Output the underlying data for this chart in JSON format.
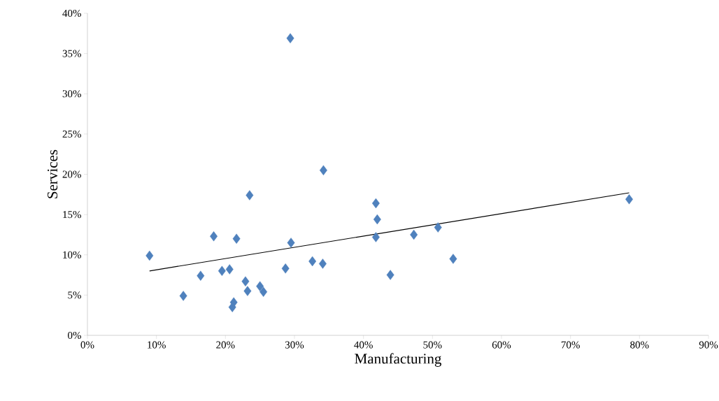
{
  "chart_data": {
    "type": "scatter",
    "xlabel": "Manufacturing",
    "ylabel": "Services",
    "marker": "diamond",
    "grid": false,
    "xlim": [
      0,
      90
    ],
    "ylim": [
      0,
      40
    ],
    "xticks": [
      {
        "value": 0,
        "label": "0%"
      },
      {
        "value": 10,
        "label": "10%"
      },
      {
        "value": 20,
        "label": "20%"
      },
      {
        "value": 30,
        "label": "30%"
      },
      {
        "value": 40,
        "label": "40%"
      },
      {
        "value": 50,
        "label": "50%"
      },
      {
        "value": 60,
        "label": "60%"
      },
      {
        "value": 70,
        "label": "70%"
      },
      {
        "value": 80,
        "label": "80%"
      },
      {
        "value": 90,
        "label": "90%"
      }
    ],
    "yticks": [
      {
        "value": 0,
        "label": "0%"
      },
      {
        "value": 5,
        "label": "5%"
      },
      {
        "value": 10,
        "label": "10%"
      },
      {
        "value": 15,
        "label": "15%"
      },
      {
        "value": 20,
        "label": "20%"
      },
      {
        "value": 25,
        "label": "25%"
      },
      {
        "value": 30,
        "label": "30%"
      },
      {
        "value": 35,
        "label": "35%"
      },
      {
        "value": 40,
        "label": "40%"
      }
    ],
    "series": [
      {
        "color": "#4f81bd",
        "x": [
          9.0,
          13.9,
          16.4,
          18.3,
          19.5,
          20.6,
          21.6,
          21.0,
          21.2,
          22.9,
          23.2,
          23.5,
          25.0,
          25.5,
          28.7,
          29.4,
          29.5,
          32.6,
          34.1,
          34.2,
          41.8,
          42.0,
          41.8,
          43.9,
          47.3,
          50.8,
          53.0,
          78.5
        ],
        "values": [
          9.9,
          4.9,
          7.4,
          12.3,
          8.0,
          8.2,
          12.0,
          3.5,
          4.1,
          6.7,
          5.5,
          17.4,
          6.1,
          5.4,
          8.3,
          36.9,
          11.5,
          9.2,
          8.9,
          20.5,
          16.4,
          14.4,
          12.2,
          7.5,
          12.5,
          13.4,
          9.5,
          16.9
        ]
      },
      {
        "type": "line",
        "color": "#000000",
        "marker": "none",
        "x": [
          9.0,
          78.5
        ],
        "values": [
          8.0,
          17.7
        ]
      }
    ]
  }
}
